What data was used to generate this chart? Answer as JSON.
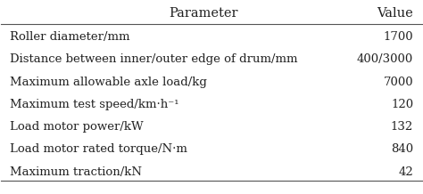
{
  "col_headers": [
    "Parameter",
    "Value"
  ],
  "rows": [
    [
      "Roller diameter/mm",
      "1700"
    ],
    [
      "Distance between inner/outer edge of drum/mm",
      "400/3000"
    ],
    [
      "Maximum allowable axle load/kg",
      "7000"
    ],
    [
      "Maximum test speed/km·h⁻¹",
      "120"
    ],
    [
      "Load motor power/kW",
      "132"
    ],
    [
      "Load motor rated torque/N·m",
      "840"
    ],
    [
      "Maximum traction/kN",
      "42"
    ]
  ],
  "background_color": "#ffffff",
  "header_line_color": "#555555",
  "text_color": "#222222",
  "font_size": 9.5,
  "header_font_size": 10.5
}
